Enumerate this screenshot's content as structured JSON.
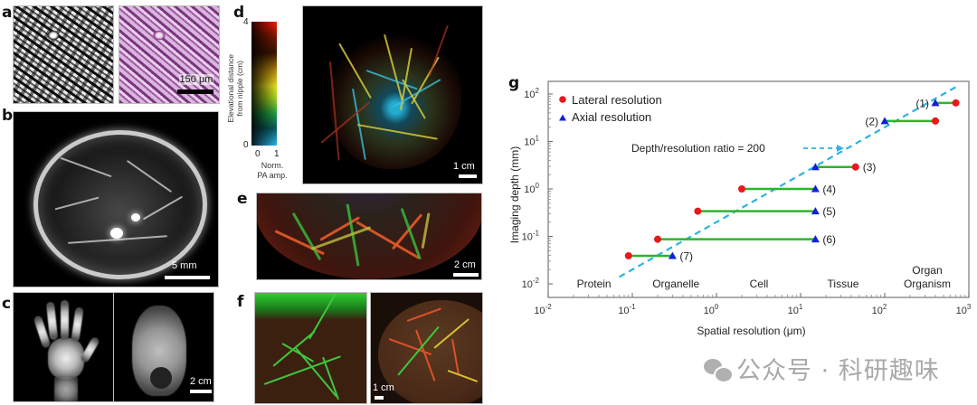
{
  "panels": {
    "a": {
      "label": "a",
      "scale_bar": "150 μm"
    },
    "b": {
      "label": "b",
      "scale_bar": "5 mm"
    },
    "c": {
      "label": "c",
      "scale_bar": "2 cm"
    },
    "d": {
      "label": "d",
      "scale_bar": "1 cm",
      "colorbar": {
        "y_title": "Elevational distance from nipple (cm)",
        "y_title_line1": "Elevational distance",
        "y_title_line2": "from nipple (cm)",
        "y_max": "4",
        "y_min": "0",
        "x_min": "0",
        "x_max": "1",
        "x_title_line1": "Norm.",
        "x_title_line2": "PA amp."
      }
    },
    "e": {
      "label": "e",
      "scale_bar": "2 cm"
    },
    "f": {
      "label": "f",
      "scale_bar": "1 cm"
    },
    "g": {
      "label": "g"
    }
  },
  "chart_data": {
    "type": "scatter",
    "panel": "g",
    "title": "",
    "xlabel": "Spatial resolution (μm)",
    "ylabel": "Imaging depth (mm)",
    "xscale": "log",
    "yscale": "log",
    "xlim": [
      0.01,
      1000
    ],
    "ylim": [
      0.006,
      140
    ],
    "x_ticks": [
      {
        "value": 0.01,
        "base": "10",
        "exp": "-2"
      },
      {
        "value": 0.1,
        "base": "10",
        "exp": "-1"
      },
      {
        "value": 1,
        "base": "10",
        "exp": "0"
      },
      {
        "value": 10,
        "base": "10",
        "exp": "1"
      },
      {
        "value": 100,
        "base": "10",
        "exp": "2"
      },
      {
        "value": 1000,
        "base": "10",
        "exp": "3"
      }
    ],
    "y_ticks": [
      {
        "value": 0.01,
        "base": "10",
        "exp": "-2"
      },
      {
        "value": 0.1,
        "base": "10",
        "exp": "-1"
      },
      {
        "value": 1,
        "base": "10",
        "exp": "0"
      },
      {
        "value": 10,
        "base": "10",
        "exp": "1"
      },
      {
        "value": 100,
        "base": "10",
        "exp": "2"
      }
    ],
    "grid": false,
    "legend_position": "top-left",
    "legend": [
      {
        "name": "Lateral resolution",
        "marker": "circle",
        "color": "#e8191b"
      },
      {
        "name": "Axial resolution",
        "marker": "triangle",
        "color": "#1020d8"
      }
    ],
    "series": [
      {
        "label": "(1)",
        "depth_mm": 65,
        "lateral_um": 700,
        "axial_um": 400,
        "label_side": "left"
      },
      {
        "label": "(2)",
        "depth_mm": 27,
        "lateral_um": 400,
        "axial_um": 100,
        "label_side": "left"
      },
      {
        "label": "(3)",
        "depth_mm": 2.9,
        "lateral_um": 45,
        "axial_um": 15,
        "label_side": "right"
      },
      {
        "label": "(4)",
        "depth_mm": 1.0,
        "lateral_um": 2,
        "axial_um": 15,
        "label_side": "right"
      },
      {
        "label": "(5)",
        "depth_mm": 0.34,
        "lateral_um": 0.6,
        "axial_um": 15,
        "label_side": "right"
      },
      {
        "label": "(6)",
        "depth_mm": 0.087,
        "lateral_um": 0.2,
        "axial_um": 15,
        "label_side": "right"
      },
      {
        "label": "(7)",
        "depth_mm": 0.039,
        "lateral_um": 0.09,
        "axial_um": 0.3,
        "label_side": "right"
      }
    ],
    "connector_color": "#2db52d",
    "reference_line": {
      "label": "Depth/resolution ratio = 200",
      "ratio": 200,
      "x_range_um": [
        0.07,
        700
      ],
      "color": "#2bb3e6",
      "style": "dashed"
    },
    "scale_categories": [
      {
        "name": "Protein",
        "x_um": 0.035
      },
      {
        "name": "Organelle",
        "x_um": 0.33
      },
      {
        "name": "Cell",
        "x_um": 3.2
      },
      {
        "name": "Tissue",
        "x_um": 32
      },
      {
        "name": "Organ",
        "x_um": 320,
        "line": 1
      },
      {
        "name": "Organism",
        "x_um": 320,
        "line": 2
      }
    ],
    "marker_colors": {
      "lateral": "#e8191b",
      "axial": "#1020d8"
    }
  },
  "watermark": {
    "text": "公众号 · 科研趣味",
    "icon": "wechat-icon"
  }
}
